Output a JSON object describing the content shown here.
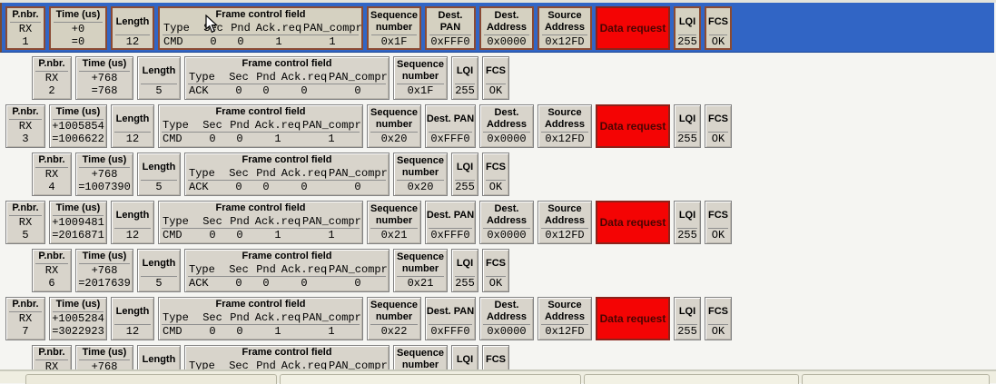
{
  "columns": {
    "pnbr": "P.nbr.",
    "time": "Time (us)",
    "length": "Length",
    "fcf_title": "Frame control field",
    "fcf_fields": [
      "Type",
      "Sec",
      "Pnd",
      "Ack.req",
      "PAN_compr"
    ],
    "seq": "Sequence number",
    "dest_pan": "Dest. PAN",
    "dest_addr": "Dest. Address",
    "src_addr": "Source Address",
    "lqi": "LQI",
    "fcs": "FCS"
  },
  "colors": {
    "selected_row_bg": "#3165c5",
    "cell_bg": "#d8d4cb",
    "selected_cell_bg": "#d5d1c1",
    "selected_cell_border": "#8a4a33",
    "data_request_bg": "#f40404",
    "data_request_text": "#4a0502"
  },
  "rows": [
    {
      "kind": "cmd",
      "selected": true,
      "pnbr_type": "RX",
      "pnbr_num": "1",
      "time_delta": "+0",
      "time_abs": "=0",
      "length": "12",
      "fcf": [
        "CMD",
        "0",
        "0",
        "1",
        "1"
      ],
      "seq": "0x1F",
      "dest_pan": "0xFFF0",
      "dest_addr": "0x0000",
      "src_addr": "0x12FD",
      "info": "Data request",
      "lqi": "255",
      "fcs": "OK"
    },
    {
      "kind": "ack",
      "selected": false,
      "pnbr_type": "RX",
      "pnbr_num": "2",
      "time_delta": "+768",
      "time_abs": "=768",
      "length": "5",
      "fcf": [
        "ACK",
        "0",
        "0",
        "0",
        "0"
      ],
      "seq": "0x1F",
      "lqi": "255",
      "fcs": "OK"
    },
    {
      "kind": "cmd",
      "selected": false,
      "pnbr_type": "RX",
      "pnbr_num": "3",
      "time_delta": "+1005854",
      "time_abs": "=1006622",
      "length": "12",
      "fcf": [
        "CMD",
        "0",
        "0",
        "1",
        "1"
      ],
      "seq": "0x20",
      "dest_pan": "0xFFF0",
      "dest_addr": "0x0000",
      "src_addr": "0x12FD",
      "info": "Data request",
      "lqi": "255",
      "fcs": "OK"
    },
    {
      "kind": "ack",
      "selected": false,
      "pnbr_type": "RX",
      "pnbr_num": "4",
      "time_delta": "+768",
      "time_abs": "=1007390",
      "length": "5",
      "fcf": [
        "ACK",
        "0",
        "0",
        "0",
        "0"
      ],
      "seq": "0x20",
      "lqi": "255",
      "fcs": "OK"
    },
    {
      "kind": "cmd",
      "selected": false,
      "pnbr_type": "RX",
      "pnbr_num": "5",
      "time_delta": "+1009481",
      "time_abs": "=2016871",
      "length": "12",
      "fcf": [
        "CMD",
        "0",
        "0",
        "1",
        "1"
      ],
      "seq": "0x21",
      "dest_pan": "0xFFF0",
      "dest_addr": "0x0000",
      "src_addr": "0x12FD",
      "info": "Data request",
      "lqi": "255",
      "fcs": "OK"
    },
    {
      "kind": "ack",
      "selected": false,
      "pnbr_type": "RX",
      "pnbr_num": "6",
      "time_delta": "+768",
      "time_abs": "=2017639",
      "length": "5",
      "fcf": [
        "ACK",
        "0",
        "0",
        "0",
        "0"
      ],
      "seq": "0x21",
      "lqi": "255",
      "fcs": "OK"
    },
    {
      "kind": "cmd",
      "selected": false,
      "pnbr_type": "RX",
      "pnbr_num": "7",
      "time_delta": "+1005284",
      "time_abs": "=3022923",
      "length": "12",
      "fcf": [
        "CMD",
        "0",
        "0",
        "1",
        "1"
      ],
      "seq": "0x22",
      "dest_pan": "0xFFF0",
      "dest_addr": "0x0000",
      "src_addr": "0x12FD",
      "info": "Data request",
      "lqi": "255",
      "fcs": "OK"
    },
    {
      "kind": "ack",
      "selected": false,
      "partial": true,
      "pnbr_type": "RX",
      "pnbr_num": "",
      "time_delta": "+768",
      "time_abs": "",
      "length": "",
      "fcf": [
        "",
        "",
        "",
        "",
        ""
      ],
      "seq": "",
      "lqi": "",
      "fcs": ""
    }
  ]
}
